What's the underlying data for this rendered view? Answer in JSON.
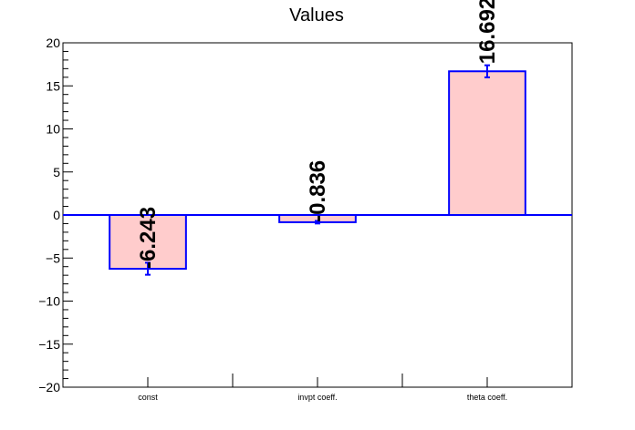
{
  "chart_data": {
    "type": "bar",
    "title": "Values",
    "categories": [
      "const",
      "invpt coeff.",
      "theta coeff."
    ],
    "values": [
      -6.243,
      -0.836,
      16.692
    ],
    "errors": [
      0.7,
      0.15,
      0.7
    ],
    "data_labels": [
      "-6.243",
      "-0.836",
      "16.692"
    ],
    "ylim": [
      -20,
      20
    ],
    "yticks": [
      -20,
      -15,
      -10,
      -5,
      0,
      5,
      10,
      15,
      20
    ],
    "ytick_labels": [
      "−20",
      "−15",
      "−10",
      "−5",
      "0",
      "5",
      "10",
      "15",
      "20"
    ],
    "xlabel": "",
    "ylabel": "",
    "grid": false,
    "colors": {
      "bar_fill": "#ffcccc",
      "bar_edge": "#0000ff",
      "zero_line": "#0000ff",
      "axis": "#000000"
    }
  }
}
